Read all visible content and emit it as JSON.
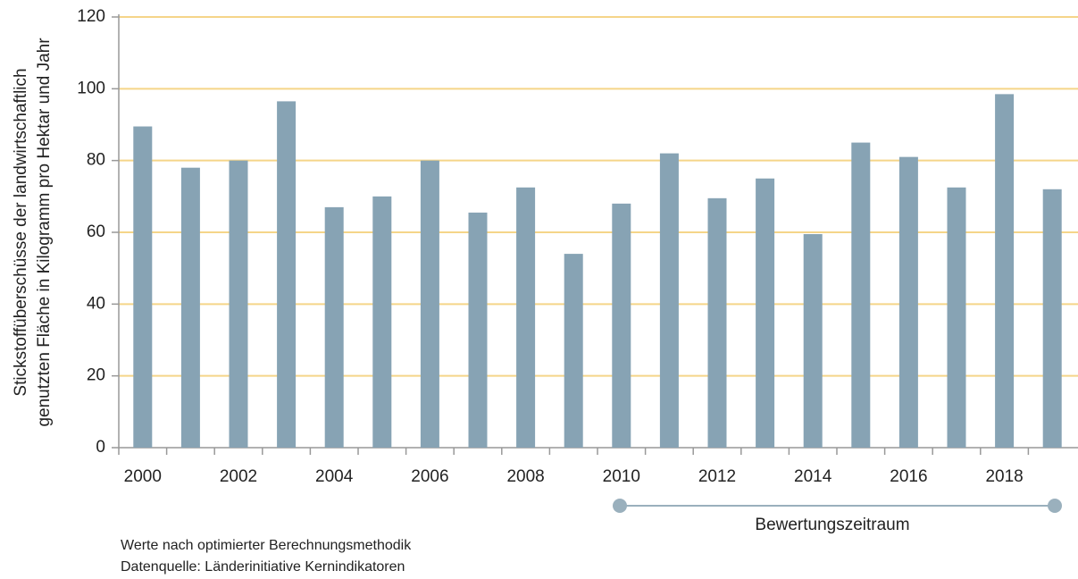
{
  "chart_data": {
    "type": "bar",
    "ylabel": [
      "Stickstoffüberschüsse der landwirtschaftlich",
      "genutzten Fläche in Kilogramm pro Hektar und Jahr"
    ],
    "categories": [
      "2000",
      null,
      "2002",
      null,
      "2004",
      null,
      "2006",
      null,
      "2008",
      null,
      "2010",
      null,
      "2012",
      null,
      "2014",
      null,
      "2016",
      null,
      "2018",
      null
    ],
    "values": [
      89.5,
      78,
      80,
      96.5,
      67,
      70,
      80,
      65.5,
      72.5,
      54,
      68,
      82,
      69.5,
      75,
      59.5,
      85,
      81,
      72.5,
      98.5,
      72
    ],
    "color": "#87a3b4",
    "ylim": [
      0,
      120
    ],
    "yticks": [
      0,
      20,
      40,
      60,
      80,
      100,
      120
    ],
    "grid": true,
    "annotation": "Bewertungszeitraum",
    "notes": [
      "Werte nach optimierter Berechnungsmethodik",
      "Datenquelle: Länderinitiative Kernindikatoren"
    ]
  }
}
